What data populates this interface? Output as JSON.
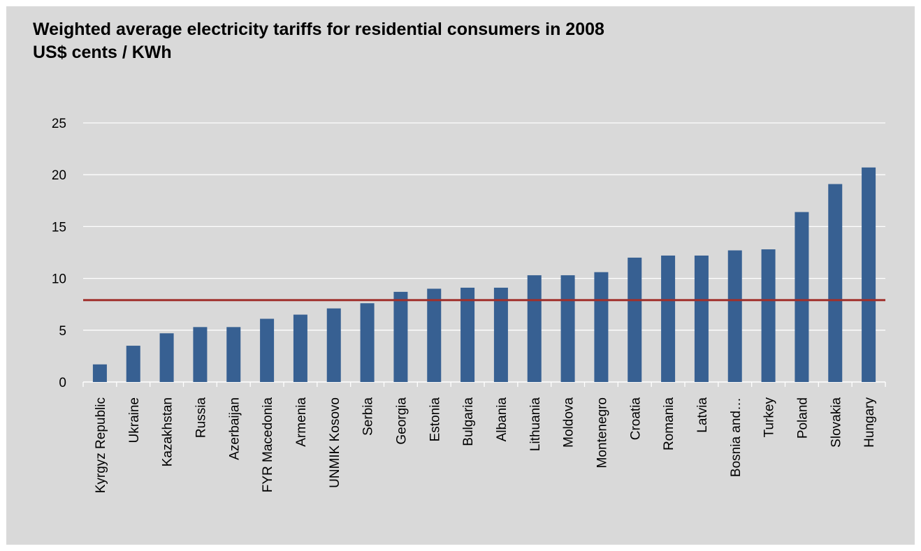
{
  "chart_data": {
    "type": "bar",
    "title": "Weighted average electricity tariffs for residential consumers in 2008",
    "subtitle": "US$ cents / KWh",
    "xlabel": "",
    "ylabel": "",
    "ylim": [
      0,
      25
    ],
    "yticks": [
      0,
      5,
      10,
      15,
      20,
      25
    ],
    "grid": true,
    "legend": "none",
    "categories": [
      "Kyrgyz Republic",
      "Ukraine",
      "Kazakhstan",
      "Russia",
      "Azerbaijan",
      "FYR Macedonia",
      "Armenia",
      "UNMIK Kosovo",
      "Serbia",
      "Georgia",
      "Estonia",
      "Bulgaria",
      "Albania",
      "Lithuania",
      "Moldova",
      "Montenegro",
      "Croatia",
      "Romania",
      "Latvia",
      "Bosnia and…",
      "Turkey",
      "Poland",
      "Slovakia",
      "Hungary"
    ],
    "values": [
      1.7,
      3.5,
      4.7,
      5.3,
      5.3,
      6.1,
      6.5,
      7.1,
      7.6,
      8.7,
      9.0,
      9.1,
      9.1,
      10.3,
      10.3,
      10.6,
      12.0,
      12.2,
      12.2,
      12.7,
      12.8,
      16.4,
      19.1,
      20.7
    ],
    "reference_line": 7.9,
    "bar_color": "#376092",
    "reference_color": "#a0302c",
    "background_color": "#d9d9d9"
  }
}
